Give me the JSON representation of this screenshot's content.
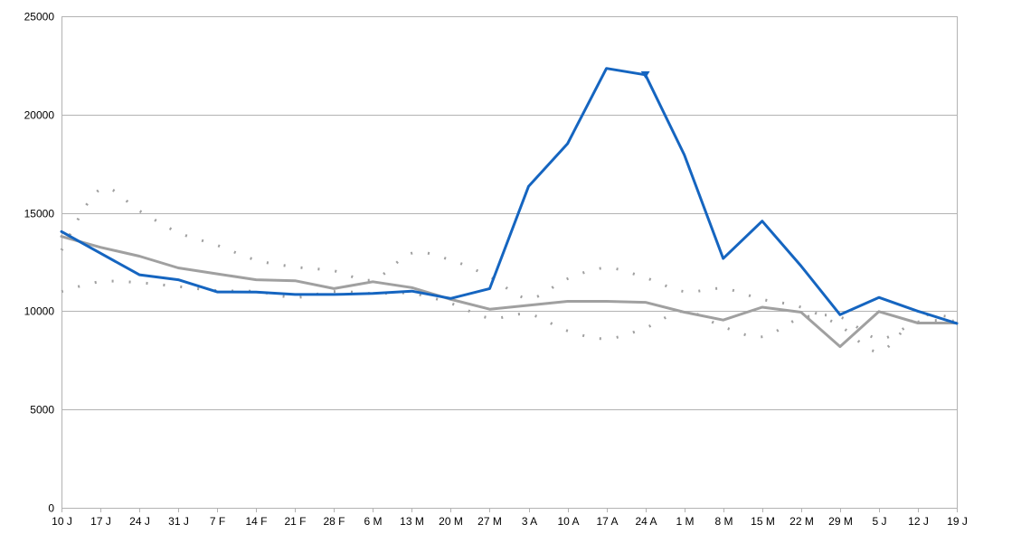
{
  "chart_data": {
    "type": "line",
    "title": "",
    "xlabel": "",
    "ylabel": "",
    "ylim": [
      0,
      25000
    ],
    "yticks": [
      0,
      5000,
      10000,
      15000,
      20000,
      25000
    ],
    "grid": true,
    "legend": "none",
    "categories": [
      "10 J",
      "17 J",
      "24 J",
      "31 J",
      "7 F",
      "14 F",
      "21 F",
      "28 F",
      "6 M",
      "13 M",
      "20 M",
      "27 M",
      "3 A",
      "10 A",
      "17 A",
      "24 A",
      "1 M",
      "8 M",
      "15 M",
      "22 M",
      "29 M",
      "5 J",
      "12 J",
      "19 J"
    ],
    "series": [
      {
        "color": "#1565c0",
        "style": "solid-thick",
        "values": [
          14050,
          12950,
          11850,
          11600,
          10980,
          10970,
          10850,
          10850,
          10900,
          11020,
          10650,
          11150,
          16350,
          18520,
          22350,
          22020,
          17950,
          12680,
          14580,
          12300,
          9820,
          10700,
          10000,
          9380
        ]
      },
      {
        "color": "#a0a0a0",
        "style": "solid",
        "values": [
          13800,
          13250,
          12800,
          12200,
          11900,
          11600,
          11550,
          11150,
          11500,
          11200,
          10600,
          10100,
          10300,
          10500,
          10500,
          10450,
          9950,
          9550,
          10200,
          9950,
          8200,
          9980,
          9400,
          9400
        ]
      },
      {
        "color": "#a0a0a0",
        "style": "dotted",
        "values": [
          13100,
          16200,
          15100,
          14000,
          13350,
          12600,
          12250,
          12050,
          11600,
          12950,
          12600,
          11750,
          10650,
          11650,
          12200,
          11700,
          11000,
          11150,
          10600,
          10200,
          9250,
          7950,
          9700,
          9650
        ]
      },
      {
        "color": "#a0a0a0",
        "style": "dotted",
        "values": [
          11000,
          11500,
          11450,
          11250,
          11050,
          11000,
          10700,
          11000,
          10900,
          10900,
          10400,
          9650,
          9850,
          9000,
          8600,
          9150,
          10000,
          9200,
          8700,
          9650,
          9700,
          8600,
          9450,
          9500
        ]
      }
    ]
  }
}
